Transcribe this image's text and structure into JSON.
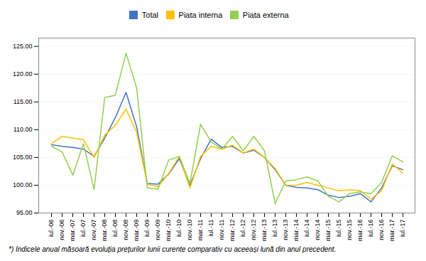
{
  "chart_data": {
    "type": "line",
    "categories": [
      "iul.-06",
      "nov.-06",
      "mar.-07",
      "iul.-07",
      "nov.-07",
      "mar.-08",
      "iul.-08",
      "nov.-08",
      "mar.-09",
      "iul.-09",
      "nov.-09",
      "mar.-10",
      "iul.-10",
      "nov.-10",
      "mar.-11",
      "iul.-11",
      "nov.-11",
      "mar.-12",
      "iul.-12",
      "nov.-12",
      "mar.-13",
      "iul.-13",
      "nov.-13",
      "mar.-14",
      "iul.-14",
      "nov.-14",
      "mar.-15",
      "iul.-15",
      "nov.-15",
      "mar.-16",
      "iul.-16",
      "nov.-16",
      "mar.-17",
      "iul.-17"
    ],
    "series": [
      {
        "name": "Total",
        "color": "#4472C4",
        "values": [
          107.3,
          107.0,
          106.8,
          106.5,
          105.2,
          108.5,
          112.2,
          116.7,
          110.5,
          100.3,
          100.2,
          102.0,
          104.8,
          100.0,
          104.8,
          108.3,
          106.8,
          107.0,
          105.8,
          106.3,
          105.0,
          102.8,
          100.0,
          99.6,
          99.5,
          99.2,
          98.2,
          97.8,
          98.0,
          98.5,
          97.0,
          99.5,
          103.5,
          102.8
        ]
      },
      {
        "name": "Piata interna",
        "color": "#FFC000",
        "values": [
          107.5,
          108.8,
          108.5,
          108.2,
          105.0,
          109.0,
          110.8,
          113.7,
          109.5,
          100.2,
          99.7,
          102.1,
          105.2,
          99.5,
          105.2,
          107.0,
          106.5,
          107.2,
          105.8,
          106.5,
          105.0,
          103.0,
          100.0,
          100.0,
          100.5,
          100.0,
          99.5,
          99.0,
          99.2,
          99.0,
          97.5,
          99.0,
          103.8,
          102.2
        ]
      },
      {
        "name": "Piata externa",
        "color": "#92D050",
        "values": [
          107.0,
          106.0,
          101.8,
          107.5,
          99.2,
          115.8,
          116.2,
          123.8,
          117.5,
          99.5,
          99.3,
          104.5,
          105.2,
          100.3,
          111.0,
          107.8,
          106.5,
          108.8,
          106.2,
          108.8,
          106.2,
          96.7,
          100.8,
          101.0,
          101.5,
          100.8,
          98.0,
          97.0,
          98.5,
          98.8,
          98.5,
          100.5,
          105.3,
          104.2
        ]
      }
    ],
    "ylim": [
      95.0,
      126.5
    ],
    "yticks": [
      {
        "value": 95,
        "label": "95.00"
      },
      {
        "value": 100,
        "label": "100.00"
      },
      {
        "value": 105,
        "label": "105.00"
      },
      {
        "value": 110,
        "label": "110.00"
      },
      {
        "value": 115,
        "label": "115.00"
      },
      {
        "value": 120,
        "label": "120.00"
      },
      {
        "value": 125,
        "label": "125.00"
      }
    ],
    "grid": true,
    "legend": "top",
    "annotations": [
      "*) Indicele anual măsoară evoluția prețurilor lunii curente comparativ cu aceeași lună din anul precedent."
    ]
  }
}
